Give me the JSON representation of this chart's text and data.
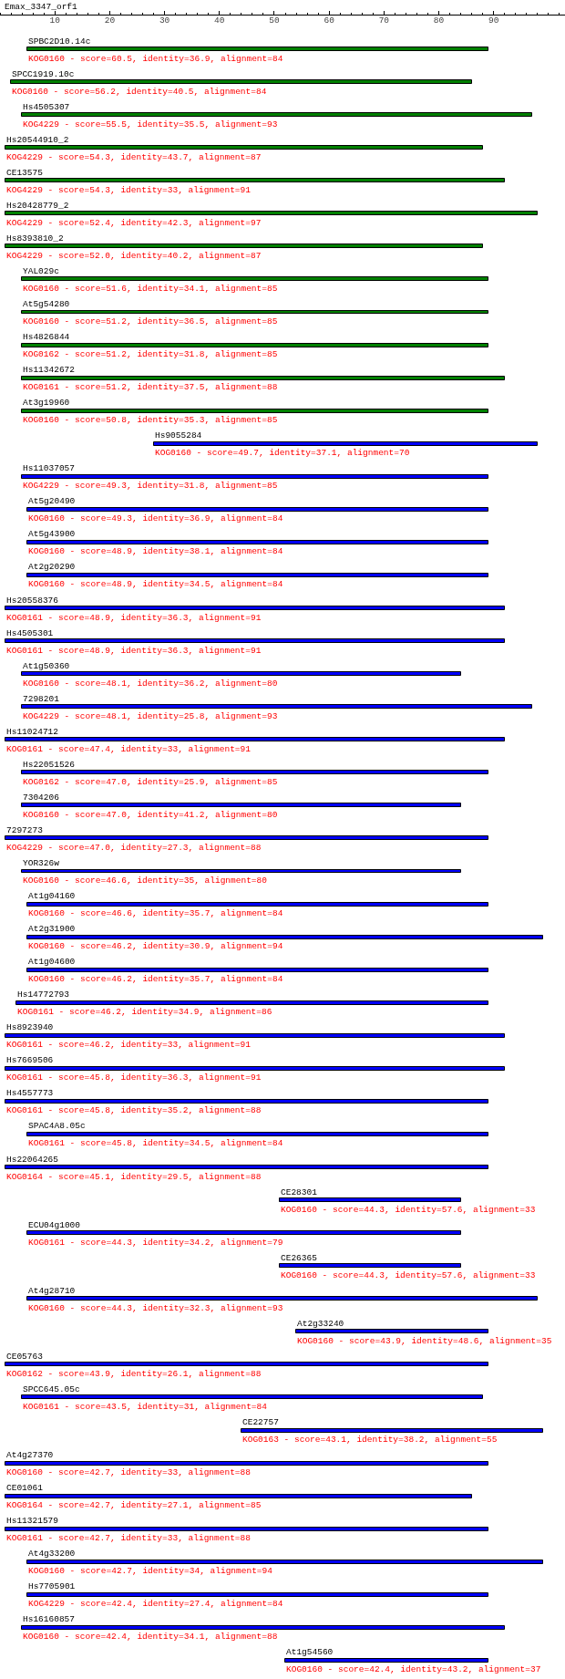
{
  "chart_data": {
    "type": "bar",
    "orientation": "horizontal",
    "title": "Emax_3347_orf1",
    "categories": [
      "SPBC2D10.14c",
      "SPCC1919.10c",
      "Hs4505307",
      "Hs20544910_2",
      "CE13575",
      "Hs20428779_2",
      "Hs8393810_2",
      "YAL029c",
      "At5g54280",
      "Hs4826844",
      "Hs11342672",
      "At3g19960",
      "Hs9055284",
      "Hs11037057",
      "At5g20490",
      "At5g43900",
      "At2g20290",
      "Hs20558376",
      "Hs4505301",
      "At1g50360",
      "7298201",
      "Hs11024712",
      "Hs22051526",
      "7304206",
      "7297273",
      "YOR326w",
      "At1g04160",
      "At2g31900",
      "At1g04600",
      "Hs14772793",
      "Hs8923940",
      "Hs7669506",
      "Hs4557773",
      "SPAC4A8.05c",
      "Hs22064265",
      "CE28301",
      "ECU04g1000",
      "CE26365",
      "At4g28710",
      "At2g33240",
      "CE05763",
      "SPCC645.05c",
      "CE22757",
      "At4g27370",
      "CE01061",
      "Hs11321579",
      "At4g33200",
      "Hs7705901",
      "Hs16160857",
      "At1g54560"
    ],
    "base": [
      5,
      2,
      4,
      1,
      1,
      1,
      1,
      4,
      4,
      4,
      4,
      4,
      28,
      4,
      5,
      5,
      5,
      1,
      1,
      4,
      4,
      1,
      4,
      4,
      1,
      4,
      5,
      5,
      5,
      3,
      1,
      1,
      1,
      5,
      1,
      51,
      5,
      51,
      5,
      54,
      1,
      4,
      44,
      1,
      1,
      1,
      5,
      5,
      4,
      52
    ],
    "values": [
      84,
      84,
      93,
      87,
      91,
      97,
      87,
      85,
      85,
      85,
      88,
      85,
      70,
      85,
      84,
      84,
      84,
      91,
      91,
      80,
      93,
      91,
      85,
      80,
      88,
      80,
      84,
      94,
      84,
      86,
      91,
      91,
      88,
      84,
      88,
      33,
      79,
      33,
      93,
      35,
      88,
      84,
      55,
      88,
      85,
      88,
      94,
      84,
      88,
      37
    ],
    "colors": [
      "#008000",
      "#008000",
      "#008000",
      "#008000",
      "#008000",
      "#008000",
      "#008000",
      "#008000",
      "#008000",
      "#008000",
      "#008000",
      "#008000",
      "#0000ff",
      "#0000ff",
      "#0000ff",
      "#0000ff",
      "#0000ff",
      "#0000ff",
      "#0000ff",
      "#0000ff",
      "#0000ff",
      "#0000ff",
      "#0000ff",
      "#0000ff",
      "#0000ff",
      "#0000ff",
      "#0000ff",
      "#0000ff",
      "#0000ff",
      "#0000ff",
      "#0000ff",
      "#0000ff",
      "#0000ff",
      "#0000ff",
      "#0000ff",
      "#0000ff",
      "#0000ff",
      "#0000ff",
      "#0000ff",
      "#0000ff",
      "#0000ff",
      "#0000ff",
      "#0000ff",
      "#0000ff",
      "#0000ff",
      "#0000ff",
      "#0000ff",
      "#0000ff",
      "#0000ff",
      "#0000ff"
    ],
    "xlim": [
      0,
      103
    ],
    "xticks": [
      10,
      20,
      30,
      40,
      50,
      60,
      70,
      80,
      90
    ],
    "annotations": [
      "KOG0160 - score=60.5, identity=36.9, alignment=84",
      "KOG0160 - score=56.2, identity=40.5, alignment=84",
      "KOG4229 - score=55.5, identity=35.5, alignment=93",
      "KOG4229 - score=54.3, identity=43.7, alignment=87",
      "KOG4229 - score=54.3, identity=33, alignment=91",
      "KOG4229 - score=52.4, identity=42.3, alignment=97",
      "KOG4229 - score=52.0, identity=40.2, alignment=87",
      "KOG0160 - score=51.6, identity=34.1, alignment=85",
      "KOG0160 - score=51.2, identity=36.5, alignment=85",
      "KOG0162 - score=51.2, identity=31.8, alignment=85",
      "KOG0161 - score=51.2, identity=37.5, alignment=88",
      "KOG0160 - score=50.8, identity=35.3, alignment=85",
      "KOG0160 - score=49.7, identity=37.1, alignment=70",
      "KOG4229 - score=49.3, identity=31.8, alignment=85",
      "KOG0160 - score=49.3, identity=36.9, alignment=84",
      "KOG0160 - score=48.9, identity=38.1, alignment=84",
      "KOG0160 - score=48.9, identity=34.5, alignment=84",
      "KOG0161 - score=48.9, identity=36.3, alignment=91",
      "KOG0161 - score=48.9, identity=36.3, alignment=91",
      "KOG0160 - score=48.1, identity=36.2, alignment=80",
      "KOG4229 - score=48.1, identity=25.8, alignment=93",
      "KOG0161 - score=47.4, identity=33, alignment=91",
      "KOG0162 - score=47.0, identity=25.9, alignment=85",
      "KOG0160 - score=47.0, identity=41.2, alignment=80",
      "KOG4229 - score=47.0, identity=27.3, alignment=88",
      "KOG0160 - score=46.6, identity=35, alignment=80",
      "KOG0160 - score=46.6, identity=35.7, alignment=84",
      "KOG0160 - score=46.2, identity=30.9, alignment=94",
      "KOG0160 - score=46.2, identity=35.7, alignment=84",
      "KOG0161 - score=46.2, identity=34.9, alignment=86",
      "KOG0161 - score=46.2, identity=33, alignment=91",
      "KOG0161 - score=45.8, identity=36.3, alignment=91",
      "KOG0161 - score=45.8, identity=35.2, alignment=88",
      "KOG0161 - score=45.8, identity=34.5, alignment=84",
      "KOG0164 - score=45.1, identity=29.5, alignment=88",
      "KOG0160 - score=44.3, identity=57.6, alignment=33",
      "KOG0161 - score=44.3, identity=34.2, alignment=79",
      "KOG0160 - score=44.3, identity=57.6, alignment=33",
      "KOG0160 - score=44.3, identity=32.3, alignment=93",
      "KOG0160 - score=43.9, identity=48.6, alignment=35",
      "KOG0162 - score=43.9, identity=26.1, alignment=88",
      "KOG0161 - score=43.5, identity=31, alignment=84",
      "KOG0163 - score=43.1, identity=38.2, alignment=55",
      "KOG0160 - score=42.7, identity=33, alignment=88",
      "KOG0164 - score=42.7, identity=27.1, alignment=85",
      "KOG0161 - score=42.7, identity=33, alignment=88",
      "KOG0160 - score=42.7, identity=34, alignment=94",
      "KOG4229 - score=42.4, identity=27.4, alignment=84",
      "KOG0160 - score=42.4, identity=34.1, alignment=88",
      "KOG0160 - score=42.4, identity=43.2, alignment=37"
    ]
  }
}
